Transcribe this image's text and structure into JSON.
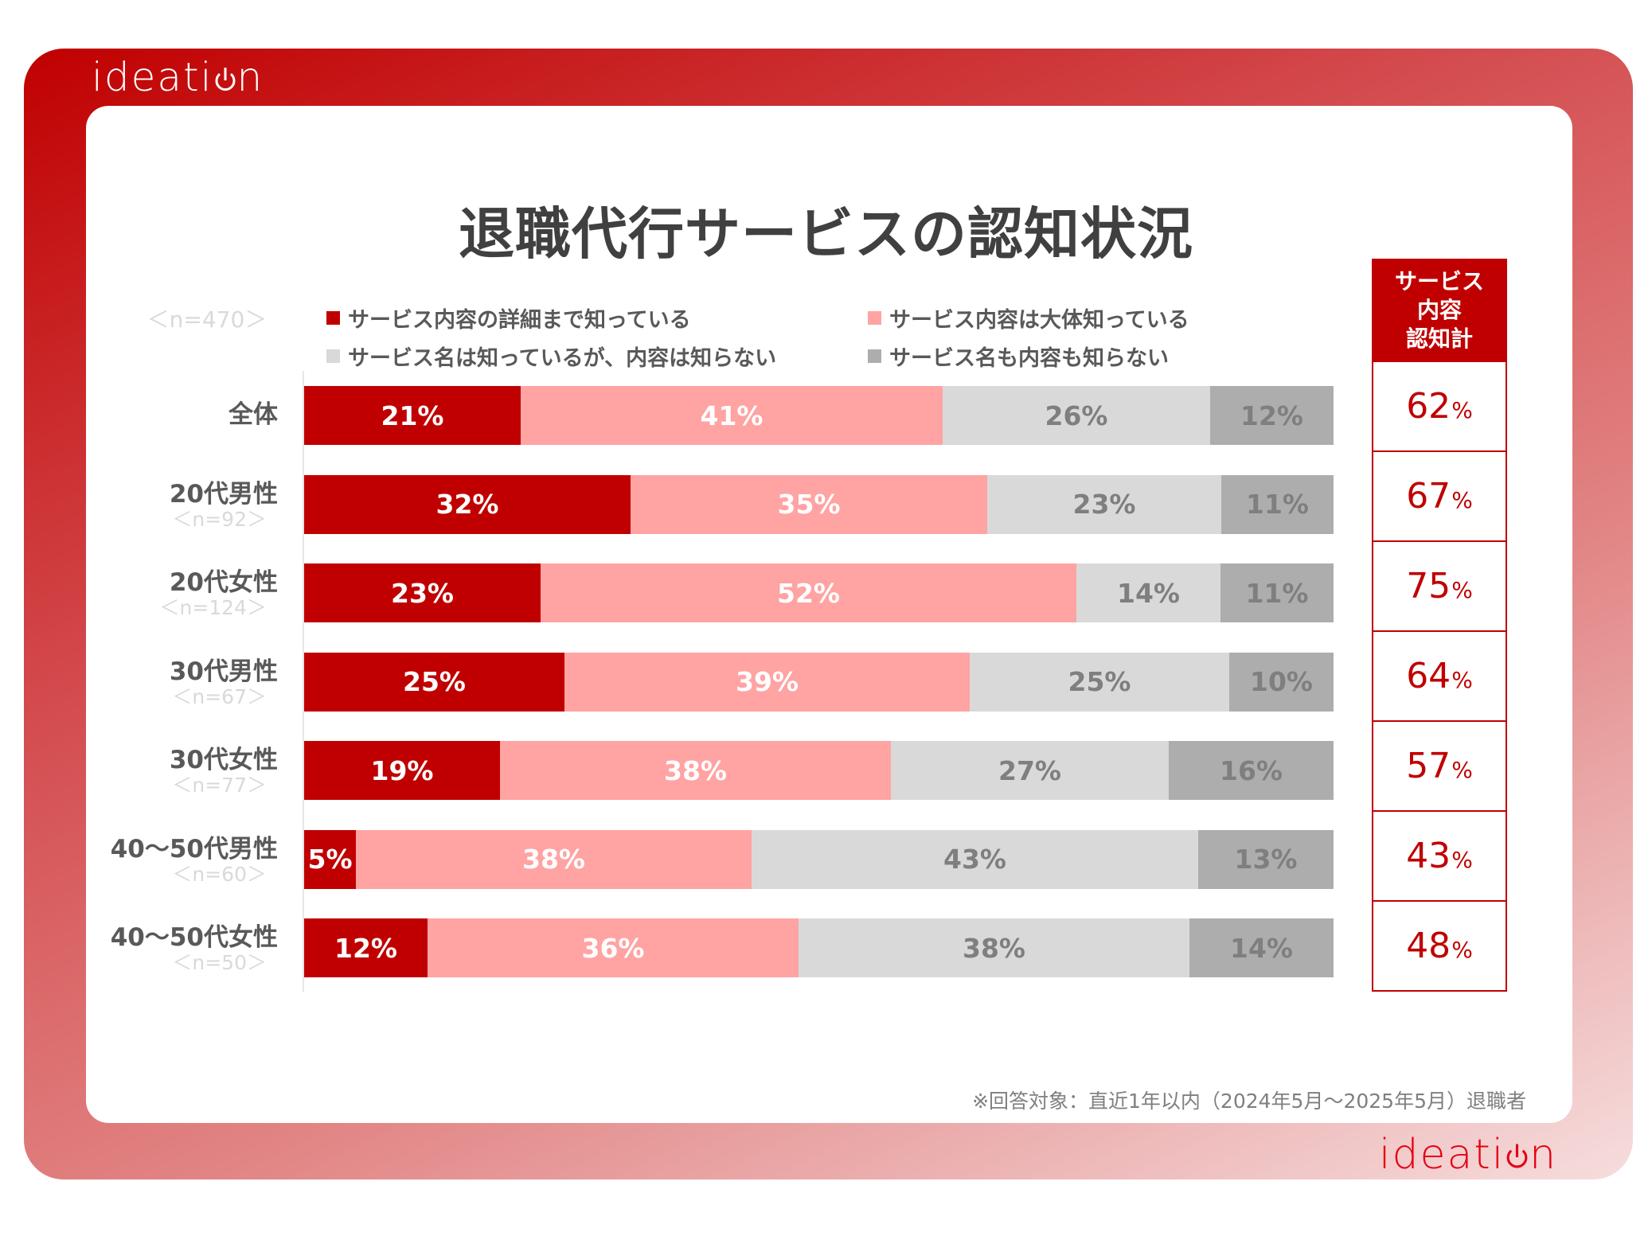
{
  "brand": {
    "logo_text_before": "ideati",
    "logo_text_after": "n"
  },
  "title": "退職代行サービスの認知状況",
  "n_total": "＜n=470＞",
  "legend": [
    {
      "label": "サービス内容の詳細まで知っている",
      "color": "#C00000"
    },
    {
      "label": "サービス内容は大体知っている",
      "color": "#FFA3A3"
    },
    {
      "label": "サービス名は知っているが、内容は知らない",
      "color": "#D9D9D9"
    },
    {
      "label": "サービス名も内容も知らない",
      "color": "#ADADAD"
    }
  ],
  "summary": {
    "header_lines": [
      "サービス",
      "内容",
      "認知計"
    ],
    "pct_symbol": "%"
  },
  "footnote": "※回答対象：直近1年以内（2024年5月〜2025年5月）退職者",
  "chart_data": {
    "type": "bar",
    "orientation": "horizontal",
    "stacked": true,
    "normalized_100": true,
    "title": "退職代行サービスの認知状況",
    "xlabel": "",
    "ylabel": "",
    "xlim": [
      0,
      100
    ],
    "grid": false,
    "legend_position": "top",
    "categories": [
      "全体",
      "20代男性",
      "20代女性",
      "30代男性",
      "30代女性",
      "40〜50代男性",
      "40〜50代女性"
    ],
    "sample_sizes": [
      "",
      "＜n=92＞",
      "＜n=124＞",
      "＜n=67＞",
      "＜n=77＞",
      "＜n=60＞",
      "＜n=50＞"
    ],
    "series": [
      {
        "name": "サービス内容の詳細まで知っている",
        "color": "#C00000",
        "label_color": "#FFFFFF",
        "values": [
          21,
          32,
          23,
          25,
          19,
          5,
          12
        ]
      },
      {
        "name": "サービス内容は大体知っている",
        "color": "#FFA3A3",
        "label_color": "#FFFFFF",
        "values": [
          41,
          35,
          52,
          39,
          38,
          38,
          36
        ]
      },
      {
        "name": "サービス名は知っているが、内容は知らない",
        "color": "#D9D9D9",
        "label_color": "#7F7F7F",
        "values": [
          26,
          23,
          14,
          25,
          27,
          43,
          38
        ]
      },
      {
        "name": "サービス名も内容も知らない",
        "color": "#ADADAD",
        "label_color": "#7F7F7F",
        "values": [
          12,
          11,
          11,
          10,
          16,
          13,
          14
        ]
      }
    ],
    "value_suffix": "%",
    "awareness_total": {
      "name": "サービス内容認知計",
      "values": [
        62,
        67,
        75,
        64,
        57,
        43,
        48
      ]
    }
  }
}
